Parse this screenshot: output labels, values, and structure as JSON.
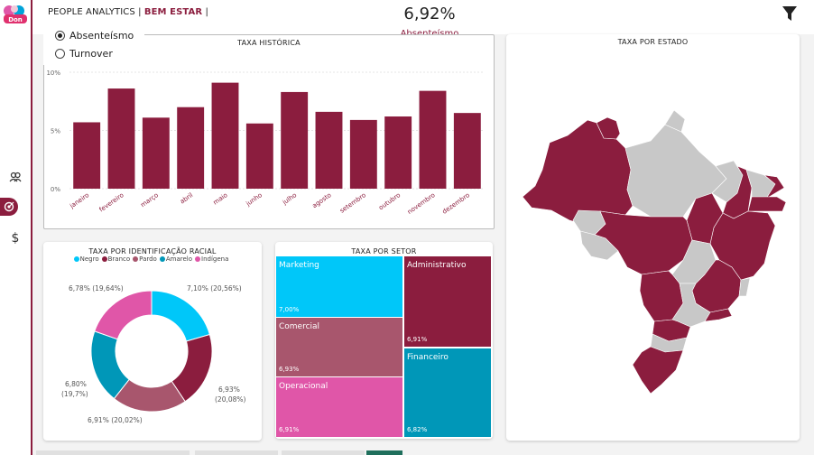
{
  "header": {
    "title": "PEOPLE ANALYTICS |",
    "title_accent": "BEM ESTAR",
    "title_suffix": "|",
    "kpi_value": "6,92%",
    "kpi_label": "Absenteísmo"
  },
  "metric_selector": {
    "options": [
      {
        "label": "Absenteísmo",
        "selected": true
      },
      {
        "label": "Turnover",
        "selected": false
      }
    ]
  },
  "nav": {
    "icons": [
      "people-icon",
      "target-icon",
      "dollar-icon"
    ]
  },
  "colors": {
    "brand": "#8b1d3e",
    "negro": "#00c7f9",
    "branco": "#8b1d3e",
    "pardo": "#a8566d",
    "amarelo": "#0097b8",
    "indigena": "#e056a8",
    "map_gray": "#c8c8c8"
  },
  "historic": {
    "title": "TAXA HISTÓRICA"
  },
  "racial": {
    "title": "TAXA POR IDENTIFICAÇÃO RACIAL",
    "labels": [
      {
        "line1": "7,10% (20,56%)",
        "line2": ""
      },
      {
        "line1": "6,93%",
        "line2": "(20,08%)"
      },
      {
        "line1": "6,91% (20,02%)",
        "line2": ""
      },
      {
        "line1": "6,80%",
        "line2": "(19,7%)"
      },
      {
        "line1": "6,78% (19,64%)",
        "line2": ""
      }
    ]
  },
  "sector": {
    "title": "TAXA POR SETOR",
    "cells": [
      {
        "name": "Marketing",
        "value": "7,00%"
      },
      {
        "name": "Administrativo",
        "value": "6,91%"
      },
      {
        "name": "Comercial",
        "value": "6,93%"
      },
      {
        "name": "Financeiro",
        "value": "6,82%"
      },
      {
        "name": "Operacional",
        "value": "6,91%"
      }
    ]
  },
  "state": {
    "title": "TAXA POR ESTADO"
  },
  "chart_data": [
    {
      "type": "bar",
      "title": "TAXA HISTÓRICA",
      "categories": [
        "janeiro",
        "fevereiro",
        "março",
        "abril",
        "maio",
        "junho",
        "julho",
        "agosto",
        "setembro",
        "outubro",
        "novembro",
        "dezembro"
      ],
      "values": [
        5.7,
        8.6,
        6.1,
        7.0,
        9.1,
        5.6,
        8.3,
        6.6,
        5.9,
        6.2,
        8.4,
        6.5
      ],
      "yticks": [
        "0%",
        "5%",
        "10%"
      ],
      "ylim": [
        0,
        10
      ],
      "grid": true
    },
    {
      "type": "pie",
      "title": "TAXA POR IDENTIFICAÇÃO RACIAL",
      "series": [
        {
          "name": "Negro",
          "value": 7.1,
          "share": 20.56
        },
        {
          "name": "Branco",
          "value": 6.93,
          "share": 20.08
        },
        {
          "name": "Pardo",
          "value": 6.91,
          "share": 20.02
        },
        {
          "name": "Amarelo",
          "value": 6.8,
          "share": 19.7
        },
        {
          "name": "Indígena",
          "value": 6.78,
          "share": 19.64
        }
      ],
      "legend": "top"
    },
    {
      "type": "heatmap",
      "title": "TAXA POR SETOR",
      "categories": [
        "Marketing",
        "Administrativo",
        "Comercial",
        "Financeiro",
        "Operacional"
      ],
      "values": [
        7.0,
        6.91,
        6.93,
        6.82,
        6.91
      ]
    }
  ]
}
